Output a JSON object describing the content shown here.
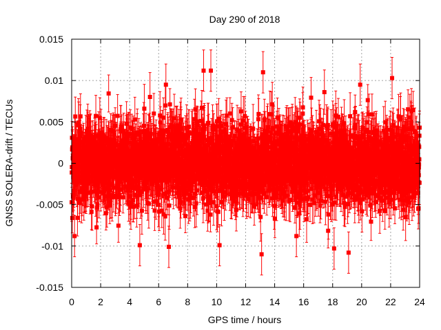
{
  "chart_data": {
    "type": "scatter",
    "title": "Day 290 of 2018",
    "xlabel": "GPS time / hours",
    "ylabel": "GNSS SOLERA-drift / TECUs",
    "xlim": [
      0,
      24
    ],
    "ylim": [
      -0.015,
      0.015
    ],
    "xticks": [
      0,
      2,
      4,
      6,
      8,
      10,
      12,
      14,
      16,
      18,
      20,
      22,
      24
    ],
    "xtick_labels": [
      "0",
      "2",
      "4",
      "6",
      "8",
      "10",
      "12",
      "14",
      "16",
      "18",
      "20",
      "22",
      "24"
    ],
    "yticks": [
      -0.015,
      -0.01,
      -0.005,
      0,
      0.005,
      0.01,
      0.015
    ],
    "ytick_labels": [
      "-0.015",
      "-0.01",
      "-0.005",
      "0",
      "0.005",
      "0.01",
      "0.015"
    ],
    "grid": true,
    "series": [
      {
        "name": "SOLERA drift",
        "color": "#ff0000",
        "marker": "square",
        "error_bars": true,
        "n_points": 2880,
        "x_range": [
          0,
          24
        ],
        "core_spread": [
          -0.006,
          0.006
        ],
        "extremes": [
          -0.011,
          0.0114
        ],
        "highlight_points": [
          {
            "x": 9.1,
            "y": 0.0112,
            "err": 0.0025
          },
          {
            "x": 9.6,
            "y": 0.0112,
            "err": 0.0025
          },
          {
            "x": 13.2,
            "y": 0.011,
            "err": 0.0025
          },
          {
            "x": 22.1,
            "y": 0.0103,
            "err": 0.0025
          },
          {
            "x": 19.9,
            "y": 0.0095,
            "err": 0.0025
          },
          {
            "x": 6.5,
            "y": 0.0095,
            "err": 0.0025
          },
          {
            "x": 13.1,
            "y": -0.011,
            "err": 0.0025
          },
          {
            "x": 19.1,
            "y": -0.0108,
            "err": 0.0025
          },
          {
            "x": 18.1,
            "y": -0.0103,
            "err": 0.0025
          },
          {
            "x": 6.7,
            "y": -0.0101,
            "err": 0.0025
          },
          {
            "x": 10.2,
            "y": -0.0099,
            "err": 0.0025
          },
          {
            "x": 4.7,
            "y": -0.0099,
            "err": 0.0025
          },
          {
            "x": 0.2,
            "y": -0.0088,
            "err": 0.0025
          },
          {
            "x": 15.5,
            "y": -0.0088,
            "err": 0.0025
          }
        ]
      }
    ]
  }
}
